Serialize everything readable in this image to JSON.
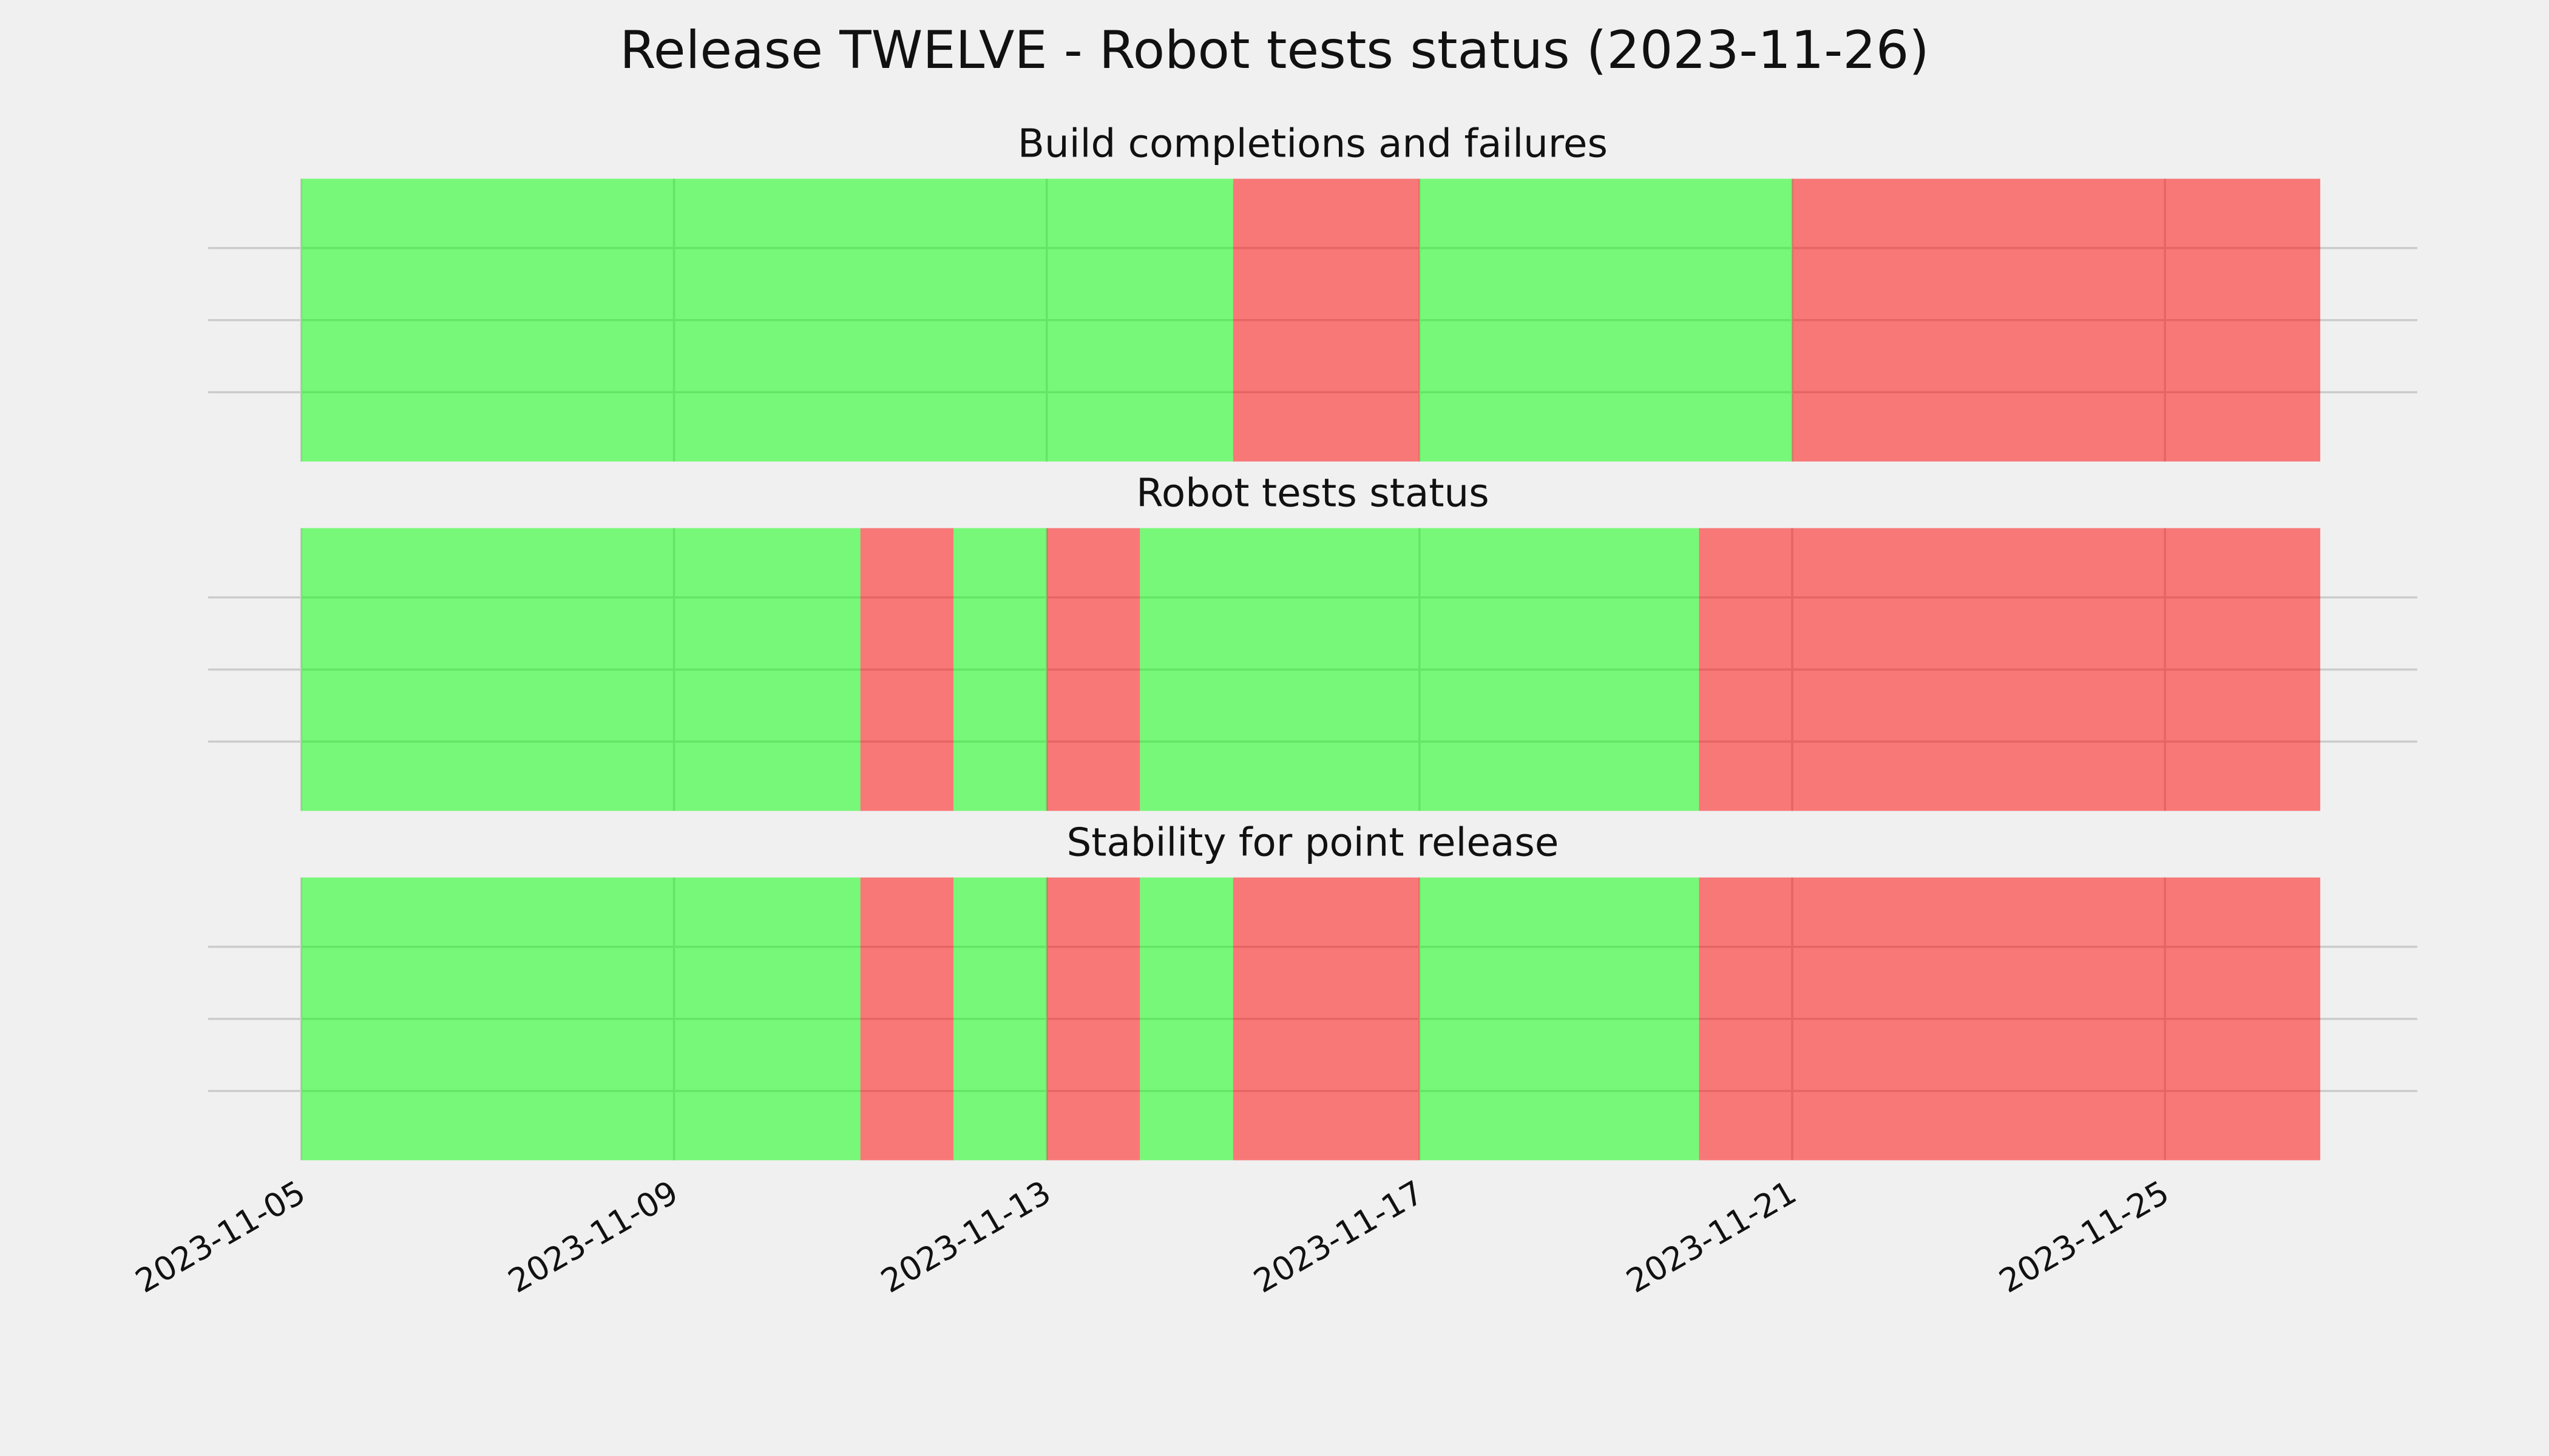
{
  "chart_data": {
    "type": "timeline",
    "title": "Release TWELVE - Robot tests status (2023-11-26)",
    "xlim": [
      "2023-11-04",
      "2023-11-27T17:00"
    ],
    "xticks": [
      "2023-11-05",
      "2023-11-09",
      "2023-11-13",
      "2023-11-17",
      "2023-11-21",
      "2023-11-25"
    ],
    "grid": true,
    "alpha": 0.5,
    "panels": [
      {
        "title": "Build completions and failures",
        "x": [
          "2023-11-05",
          "2023-11-15",
          "2023-11-17",
          "2023-11-21",
          "2023-11-26T16:00"
        ],
        "colors": [
          "#00ff00",
          "#ff0000",
          "#00ff00",
          "#ff0000"
        ]
      },
      {
        "title": "Robot tests status",
        "x": [
          "2023-11-05",
          "2023-11-11",
          "2023-11-12",
          "2023-11-13",
          "2023-11-14",
          "2023-11-20",
          "2023-11-26T16:00"
        ],
        "colors": [
          "#00ff00",
          "#ff0000",
          "#00ff00",
          "#ff0000",
          "#00ff00",
          "#ff0000"
        ]
      },
      {
        "title": "Stability for point release",
        "x": [
          "2023-11-05",
          "2023-11-11",
          "2023-11-12",
          "2023-11-13",
          "2023-11-14",
          "2023-11-15",
          "2023-11-17",
          "2023-11-20",
          "2023-11-26T16:00"
        ],
        "colors": [
          "#00ff00",
          "#ff0000",
          "#00ff00",
          "#ff0000",
          "#00ff00",
          "#ff0000",
          "#00ff00",
          "#ff0000"
        ]
      }
    ]
  }
}
